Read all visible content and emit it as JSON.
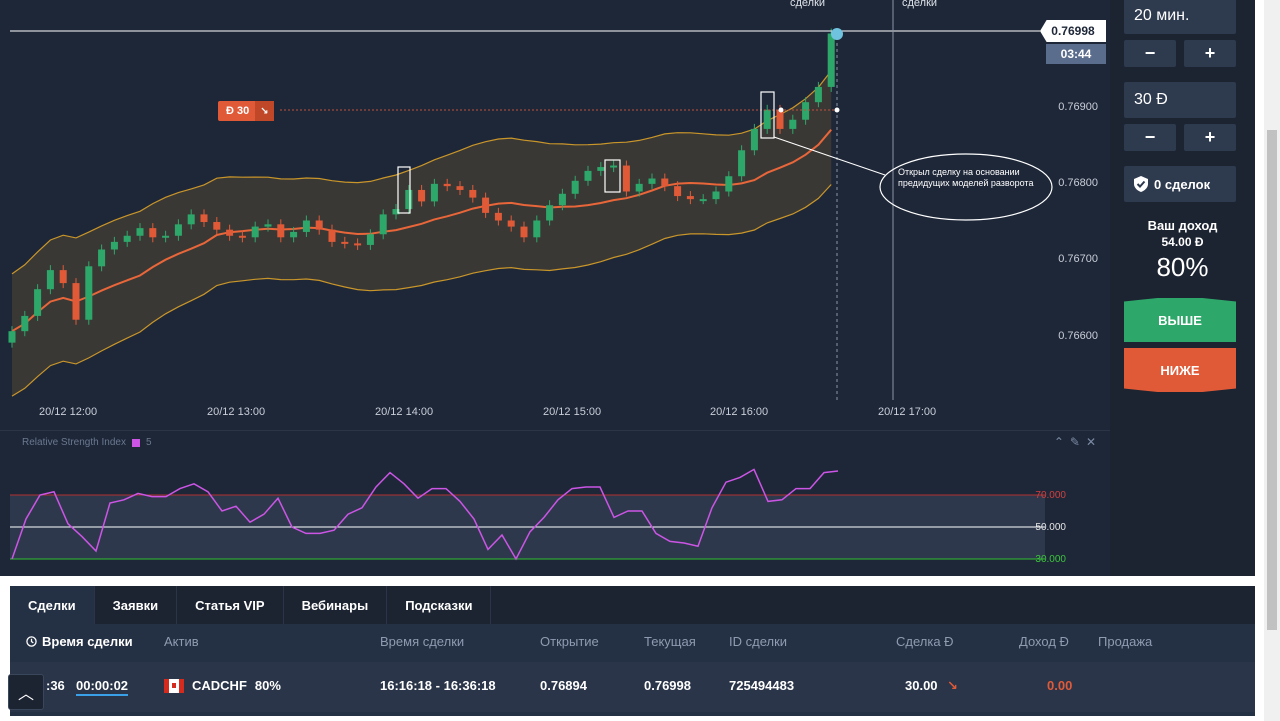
{
  "chart": {
    "top_notes": [
      "сделки",
      "сделки"
    ],
    "price_labels": [
      "0.76900",
      "0.76800",
      "0.76700",
      "0.76600"
    ],
    "time_labels": [
      "20/12 12:00",
      "20/12 13:00",
      "20/12 14:00",
      "20/12 15:00",
      "20/12 16:00",
      "20/12 17:00"
    ],
    "current_price": "0.76998",
    "timer": "03:44",
    "deal_marker_amount": "Ð 30",
    "deal_marker_arrow": "↘",
    "annotation": "Открыл сделку на основании предидущих моделей разворота",
    "colors": {
      "up": "#2ea86a",
      "down": "#e05a38",
      "band": "#c9962a",
      "ma": "#e8663a"
    }
  },
  "rsi": {
    "title": "Relative Strength Index",
    "period": "5",
    "levels": [
      "70.000",
      "50.000",
      "30.000"
    ],
    "tools": [
      "chevron-up-icon",
      "pencil-icon",
      "close-icon"
    ],
    "color": "#cc55e6"
  },
  "right_panel": {
    "time_value": "20 мин.",
    "minus": "−",
    "plus": "+",
    "amount_value": "30 Ð",
    "deals_count": "0 сделок",
    "income_title": "Ваш доход",
    "income_amount": "54.00 Ð",
    "income_pct": "80%",
    "btn_up": "ВЫШЕ",
    "btn_down": "НИЖЕ"
  },
  "bottom": {
    "tabs": [
      "Сделки",
      "Заявки",
      "Статья VIP",
      "Вебинары",
      "Подсказки"
    ],
    "headers": [
      "Время сделки",
      "Актив",
      "Время сделки",
      "Открытие",
      "Текущая",
      "ID сделки",
      "Сделка Ð",
      "Доход Ð",
      "Продажа"
    ],
    "row": {
      "time_left_partial": ":36",
      "countdown": "00:00:02",
      "asset": "CADCHF",
      "asset_pct": "80%",
      "period": "16:16:18 - 16:36:18",
      "open": "0.76894",
      "current": "0.76998",
      "id": "725494483",
      "amount": "30.00",
      "direction": "↘",
      "income": "0.00"
    }
  }
}
